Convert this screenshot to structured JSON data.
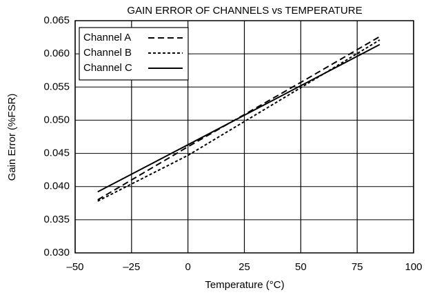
{
  "chart_data": {
    "type": "line",
    "title": "GAIN ERROR OF CHANNELS vs TEMPERATURE",
    "xlabel": "Temperature (°C)",
    "ylabel": "Gain Error  (%FSR)",
    "x": [
      -40,
      0,
      50,
      85
    ],
    "series": [
      {
        "name": "Channel A",
        "color": "#000000",
        "linestyle": "dashed",
        "values": [
          0.038,
          0.046,
          0.0557,
          0.0626
        ]
      },
      {
        "name": "Channel B",
        "color": "#000000",
        "linestyle": "dotted",
        "values": [
          0.0378,
          0.0447,
          0.0549,
          0.0621
        ]
      },
      {
        "name": "Channel C",
        "color": "#000000",
        "linestyle": "solid",
        "values": [
          0.0392,
          0.0463,
          0.0552,
          0.0614
        ]
      }
    ],
    "xlim": [
      -50,
      100
    ],
    "xticks": [
      {
        "value": -50,
        "label": "–50"
      },
      {
        "value": -25,
        "label": "–25"
      },
      0,
      25,
      50,
      75,
      100
    ],
    "ylim": [
      0.03,
      0.065
    ],
    "yticks": [
      {
        "value": 0.03,
        "label": "0.030"
      },
      {
        "value": 0.035,
        "label": "0.035"
      },
      {
        "value": 0.04,
        "label": "0.040"
      },
      {
        "value": 0.045,
        "label": "0.045"
      },
      {
        "value": 0.05,
        "label": "0.050"
      },
      {
        "value": 0.055,
        "label": "0.055"
      },
      {
        "value": 0.06,
        "label": "0.060"
      },
      {
        "value": 0.065,
        "label": "0.065"
      }
    ],
    "grid": true,
    "legend": "top-left"
  }
}
